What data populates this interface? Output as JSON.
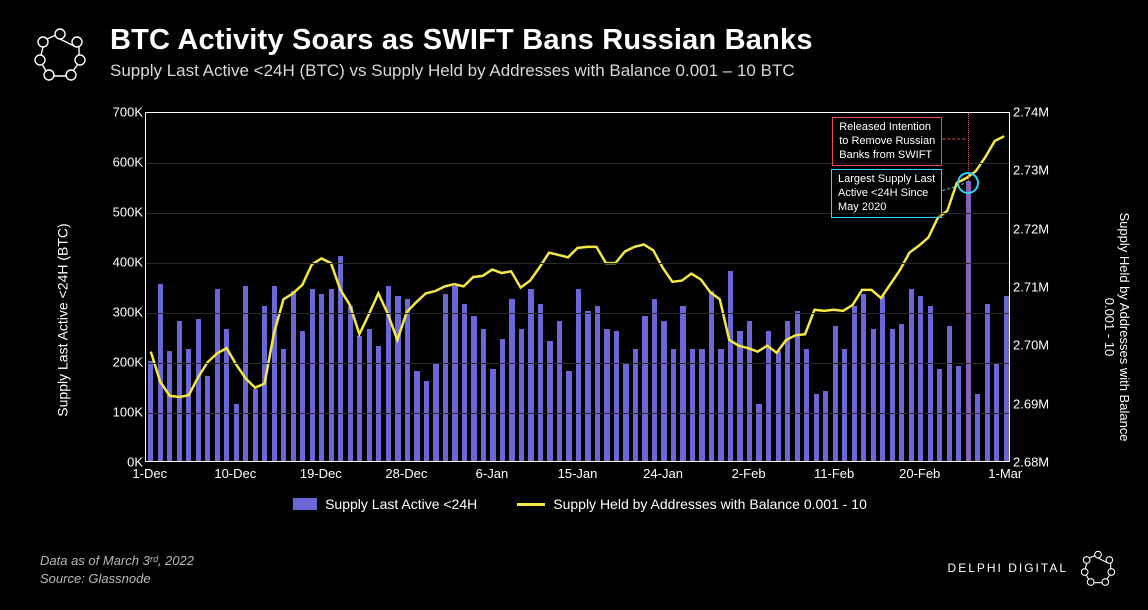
{
  "header": {
    "title": "BTC Activity Soars as SWIFT Bans Russian Banks",
    "subtitle": "Supply Last Active <24H (BTC) vs Supply Held by Addresses with Balance 0.001 – 10 BTC"
  },
  "chart": {
    "type": "combo-bar-line",
    "background_color": "#000000",
    "plot_border_color": "#ffffff",
    "grid_color": "#2a2a2a",
    "bar_color": "#6b67d6",
    "line_color": "#f5e843",
    "line_width": 2.5,
    "bar_width_ratio": 0.55,
    "y_left": {
      "label": "Supply Last Active <24H (BTC)",
      "label_fontsize": 14,
      "min": 0,
      "max": 700,
      "ticks": [
        0,
        100,
        200,
        300,
        400,
        500,
        600,
        700
      ],
      "tick_labels": [
        "0K",
        "100K",
        "200K",
        "300K",
        "400K",
        "500K",
        "600K",
        "700K"
      ]
    },
    "y_right": {
      "label": "Supply Held by Addresses with Balance\n0.001 - 10",
      "label_fontsize": 13,
      "min": 2.68,
      "max": 2.74,
      "ticks": [
        2.68,
        2.69,
        2.7,
        2.71,
        2.72,
        2.73,
        2.74
      ],
      "tick_labels": [
        "2.68M",
        "2.69M",
        "2.70M",
        "2.71M",
        "2.72M",
        "2.73M",
        "2.74M"
      ]
    },
    "x_ticks": [
      "1-Dec",
      "10-Dec",
      "19-Dec",
      "28-Dec",
      "6-Jan",
      "15-Jan",
      "24-Jan",
      "2-Feb",
      "11-Feb",
      "20-Feb",
      "1-Mar"
    ],
    "bars": [
      200,
      355,
      220,
      280,
      225,
      285,
      170,
      345,
      265,
      115,
      350,
      145,
      310,
      350,
      225,
      340,
      260,
      345,
      335,
      345,
      410,
      310,
      250,
      265,
      230,
      350,
      330,
      325,
      180,
      160,
      195,
      335,
      350,
      315,
      290,
      265,
      185,
      245,
      325,
      265,
      345,
      315,
      240,
      280,
      180,
      345,
      300,
      310,
      265,
      260,
      195,
      225,
      290,
      325,
      280,
      225,
      310,
      225,
      225,
      340,
      225,
      380,
      260,
      280,
      115,
      260,
      220,
      280,
      300,
      225,
      135,
      140,
      270,
      225,
      310,
      335,
      265,
      330,
      265,
      275,
      345,
      330,
      310,
      185,
      270,
      190,
      560,
      135,
      315,
      195,
      330
    ],
    "line": [
      2.699,
      2.6938,
      2.6914,
      2.6912,
      2.6915,
      2.6946,
      2.6972,
      2.6987,
      2.6996,
      2.6968,
      2.6944,
      2.6928,
      2.6935,
      2.7022,
      2.708,
      2.709,
      2.7105,
      2.714,
      2.715,
      2.7142,
      2.7096,
      2.707,
      2.702,
      2.7054,
      2.709,
      2.7055,
      2.701,
      2.7058,
      2.7075,
      2.709,
      2.7094,
      2.7102,
      2.7106,
      2.7102,
      2.7118,
      2.712,
      2.7131,
      2.7125,
      2.7128,
      2.71,
      2.7112,
      2.7135,
      2.716,
      2.7156,
      2.7152,
      2.7168,
      2.717,
      2.717,
      2.7142,
      2.7142,
      2.7162,
      2.717,
      2.7174,
      2.7164,
      2.7134,
      2.711,
      2.7112,
      2.7124,
      2.7114,
      2.7092,
      2.708,
      2.701,
      2.7,
      2.6996,
      2.699,
      2.7,
      2.6988,
      2.701,
      2.7018,
      2.702,
      2.7062,
      2.706,
      2.7062,
      2.706,
      2.707,
      2.7096,
      2.7096,
      2.7082,
      2.7106,
      2.713,
      2.716,
      2.7172,
      2.7186,
      2.722,
      2.7232,
      2.728,
      2.7288,
      2.73,
      2.7324,
      2.7352,
      2.736
    ],
    "annotations": {
      "red_box": {
        "text": "Released Intention\nto Remove Russian\nBanks from SWIFT",
        "border_color": "#e85050",
        "text_color": "#ffffff"
      },
      "blue_box": {
        "text": "Largest Supply Last\nActive <24H Since\nMay 2020",
        "border_color": "#36d0ff",
        "text_color": "#ffffff"
      },
      "circle_color": "#36d0ff",
      "event_index": 86
    },
    "legend": {
      "bar_label": "Supply Last Active <24H",
      "line_label": "Supply Held by Addresses with Balance 0.001 - 10"
    }
  },
  "footer": {
    "date_text": "Data as of March 3ʳᵈ, 2022",
    "source_text": "Source:  Glassnode"
  },
  "brand": {
    "name": "DELPHI DIGITAL"
  }
}
